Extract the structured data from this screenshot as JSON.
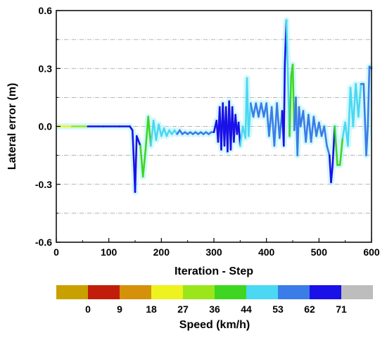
{
  "chart_data": {
    "type": "line",
    "xlabel": "Iteration - Step",
    "ylabel": "Lateral error (m)",
    "xlim": [
      0,
      600
    ],
    "ylim": [
      -0.6,
      0.6
    ],
    "x_ticks": [
      0,
      100,
      200,
      300,
      400,
      500,
      600
    ],
    "y_ticks": [
      -0.6,
      -0.3,
      0.0,
      0.3,
      0.6
    ],
    "y_tick_labels": [
      "-0.6",
      "-0.3",
      "0.0",
      "0.3",
      "0.6"
    ],
    "grid": "horizontal dash-dot",
    "series": [
      {
        "x": [
          0,
          30,
          60,
          90,
          120,
          140,
          145,
          148,
          150,
          153,
          160,
          165,
          170,
          175,
          180,
          185,
          190,
          195,
          200,
          205,
          210,
          215,
          220,
          225,
          230,
          235,
          240,
          245,
          250,
          255,
          260,
          265,
          270,
          275,
          280,
          285,
          290,
          295,
          300,
          305,
          308,
          311,
          314,
          317,
          320,
          323,
          326,
          329,
          332,
          335,
          338,
          341,
          344,
          347,
          350,
          355,
          360,
          363,
          366,
          370,
          375,
          380,
          385,
          390,
          395,
          400,
          405,
          410,
          415,
          420,
          425,
          430,
          433,
          435,
          438,
          441,
          444,
          447,
          450,
          453,
          456,
          459,
          462,
          465,
          470,
          475,
          480,
          485,
          490,
          495,
          500,
          505,
          510,
          515,
          520,
          523,
          526,
          530,
          535,
          540,
          545,
          550,
          555,
          560,
          565,
          570,
          575,
          580,
          585,
          590,
          593,
          596,
          600
        ],
        "y": [
          0,
          0,
          0,
          0,
          0,
          0,
          -0.02,
          -0.2,
          -0.34,
          -0.05,
          -0.1,
          -0.26,
          -0.12,
          0.05,
          -0.1,
          0.03,
          -0.07,
          0.01,
          -0.05,
          -0.01,
          -0.05,
          -0.02,
          -0.04,
          -0.02,
          -0.04,
          -0.02,
          -0.04,
          -0.03,
          -0.04,
          -0.03,
          -0.04,
          -0.03,
          -0.04,
          -0.03,
          -0.04,
          -0.03,
          -0.04,
          -0.03,
          -0.03,
          0.03,
          -0.08,
          0.1,
          -0.12,
          0.12,
          -0.1,
          0.1,
          -0.13,
          0.13,
          -0.12,
          0.1,
          -0.08,
          0.06,
          -0.04,
          0.02,
          -0.1,
          0.0,
          -0.06,
          0.25,
          -0.05,
          0.12,
          0.05,
          0.12,
          0.05,
          0.12,
          0.05,
          0.12,
          -0.05,
          0.1,
          -0.1,
          0.12,
          -0.06,
          0.08,
          -0.1,
          0.32,
          0.55,
          0.25,
          -0.05,
          0.26,
          0.32,
          -0.02,
          0.15,
          -0.15,
          0.1,
          0.0,
          0.08,
          -0.08,
          0.06,
          -0.08,
          0.05,
          -0.05,
          0.02,
          -0.05,
          0.0,
          -0.1,
          -0.15,
          -0.29,
          -0.2,
          0.0,
          -0.2,
          -0.2,
          -0.06,
          0.02,
          -0.1,
          0.2,
          0.0,
          0.22,
          0.05,
          0.22,
          0.22,
          -0.15,
          0.0,
          0.31,
          0.3
        ]
      }
    ],
    "colorbar": {
      "title": "Speed (km/h)",
      "tick_labels": [
        "0",
        "9",
        "18",
        "27",
        "36",
        "44",
        "53",
        "62",
        "71"
      ],
      "colors": [
        "#c8a000",
        "#c21d0a",
        "#d4910a",
        "#eef21e",
        "#9ae61a",
        "#3ed620",
        "#4ad8f2",
        "#3a7ce8",
        "#1a10e8",
        "#bdbdbd"
      ]
    }
  }
}
